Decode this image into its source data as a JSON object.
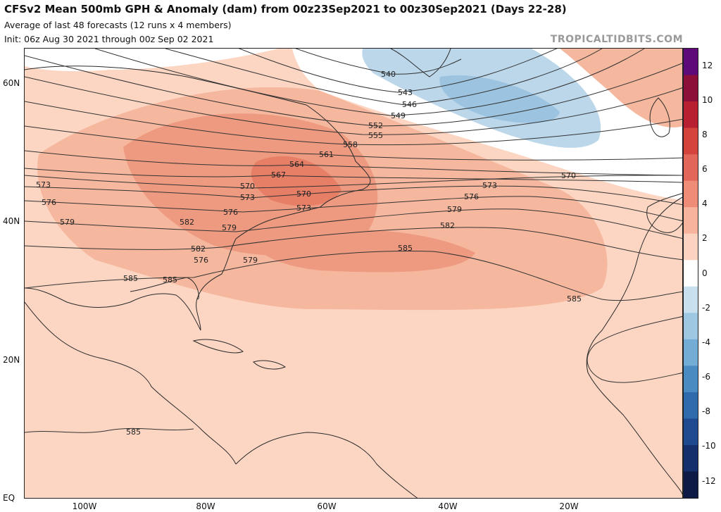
{
  "header": {
    "title": "CFSv2 Mean 500mb GPH & Anomaly (dam) from 00z23Sep2021 to 00z30Sep2021 (Days 22-28)",
    "subtitle1": "Average of last 48 forecasts (12 runs x 4 members)",
    "subtitle2": "Init: 06z Aug 30 2021 through 00z Sep 02 2021",
    "credit": "TROPICALTIDBITS.COM"
  },
  "axes": {
    "lat_labels": [
      "60N",
      "40N",
      "20N",
      "EQ"
    ],
    "lon_labels": [
      "100W",
      "80W",
      "60W",
      "40W",
      "20W"
    ]
  },
  "colorbar": {
    "ticks": [
      "12",
      "10",
      "8",
      "6",
      "4",
      "2",
      "0",
      "-2",
      "-4",
      "-6",
      "-8",
      "-10",
      "-12"
    ],
    "colors": [
      "#5e0b79",
      "#8c0f3a",
      "#b82031",
      "#d4443d",
      "#e2665a",
      "#ee8c78",
      "#f7b39b",
      "#fbd3c0",
      "#ffffff",
      "#c8dfee",
      "#9ec8e2",
      "#73acd4",
      "#4a8cc2",
      "#2e6aac",
      "#1f4a8f",
      "#142f6b",
      "#0c1a45"
    ]
  },
  "map": {
    "ocean_color": "#fcd6c2",
    "contour_labels": [
      "540",
      "543",
      "546",
      "549",
      "552",
      "555",
      "558",
      "561",
      "564",
      "567",
      "570",
      "573",
      "576",
      "579",
      "582",
      "585",
      "570",
      "573",
      "576",
      "579",
      "582",
      "585",
      "585",
      "585",
      "573",
      "576",
      "579",
      "570",
      "573",
      "576",
      "579",
      "582",
      "585"
    ]
  }
}
